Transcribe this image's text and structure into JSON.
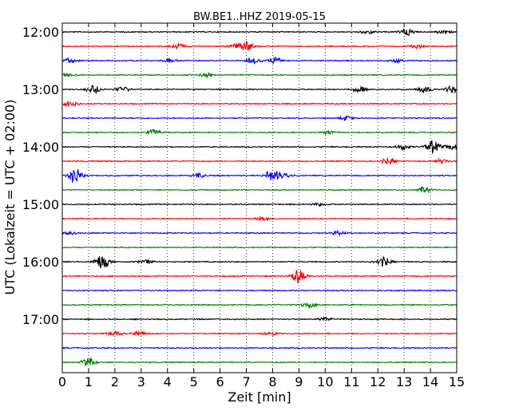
{
  "chart_data": {
    "type": "line",
    "title": "BW.BE1..HHZ 2019-05-15",
    "xlabel": "Zeit  [min]",
    "ylabel": "UTC (Lokalzeit = UTC + 02:00)",
    "xlim": [
      0,
      15
    ],
    "x_ticks": [
      "0",
      "1",
      "2",
      "3",
      "4",
      "5",
      "6",
      "7",
      "8",
      "9",
      "10",
      "11",
      "12",
      "13",
      "14",
      "15"
    ],
    "y_ticks": [
      "12:00",
      "13:00",
      "14:00",
      "15:00",
      "16:00",
      "17:00"
    ],
    "grid": "vertical-dotted",
    "trace_colors": [
      "#000000",
      "#ff0000",
      "#0000ff",
      "#008000"
    ],
    "trace_interval_min": 15,
    "traces": [
      {
        "start": "12:00",
        "events": [
          [
            11.6,
            0.25
          ],
          [
            13.1,
            0.45
          ],
          [
            14.5,
            0.3
          ]
        ]
      },
      {
        "start": "12:15",
        "events": [
          [
            4.4,
            0.4
          ],
          [
            6.6,
            0.35
          ],
          [
            7.0,
            0.55
          ],
          [
            13.5,
            0.3
          ]
        ]
      },
      {
        "start": "12:30",
        "events": [
          [
            0.3,
            0.35
          ],
          [
            4.1,
            0.25
          ],
          [
            7.3,
            0.45
          ],
          [
            8.1,
            0.4
          ],
          [
            12.7,
            0.3
          ]
        ]
      },
      {
        "start": "12:45",
        "events": [
          [
            0.2,
            0.25
          ],
          [
            5.5,
            0.25
          ]
        ]
      },
      {
        "start": "13:00",
        "events": [
          [
            1.2,
            0.6
          ],
          [
            2.3,
            0.35
          ],
          [
            11.3,
            0.4
          ],
          [
            13.8,
            0.4
          ],
          [
            14.8,
            0.45
          ]
        ]
      },
      {
        "start": "13:15",
        "events": [
          [
            0.3,
            0.45
          ]
        ]
      },
      {
        "start": "13:30",
        "events": [
          [
            10.8,
            0.25
          ]
        ]
      },
      {
        "start": "13:45",
        "events": [
          [
            3.5,
            0.45
          ],
          [
            10.1,
            0.3
          ]
        ]
      },
      {
        "start": "14:00",
        "events": [
          [
            13.0,
            0.4
          ],
          [
            14.1,
            0.9
          ],
          [
            14.8,
            0.4
          ]
        ]
      },
      {
        "start": "14:15",
        "events": [
          [
            12.4,
            0.45
          ],
          [
            14.4,
            0.3
          ]
        ]
      },
      {
        "start": "14:30",
        "events": [
          [
            0.5,
            1.0
          ],
          [
            5.2,
            0.3
          ],
          [
            8.0,
            1.0
          ],
          [
            8.5,
            0.3
          ]
        ]
      },
      {
        "start": "14:45",
        "events": [
          [
            13.8,
            0.5
          ]
        ]
      },
      {
        "start": "15:00",
        "events": [
          [
            9.8,
            0.2
          ]
        ]
      },
      {
        "start": "15:15",
        "events": [
          [
            7.6,
            0.35
          ]
        ]
      },
      {
        "start": "15:30",
        "events": [
          [
            0.3,
            0.2
          ],
          [
            10.5,
            0.3
          ]
        ]
      },
      {
        "start": "15:45",
        "events": []
      },
      {
        "start": "16:00",
        "events": [
          [
            1.5,
            1.0
          ],
          [
            3.2,
            0.25
          ],
          [
            12.2,
            0.7
          ]
        ]
      },
      {
        "start": "16:15",
        "events": [
          [
            9.0,
            1.0
          ]
        ]
      },
      {
        "start": "16:30",
        "events": []
      },
      {
        "start": "16:45",
        "events": [
          [
            9.4,
            0.4
          ]
        ]
      },
      {
        "start": "17:00",
        "events": [
          [
            10.0,
            0.25
          ]
        ]
      },
      {
        "start": "17:15",
        "events": [
          [
            2.0,
            0.3
          ],
          [
            2.9,
            0.25
          ],
          [
            7.9,
            0.3
          ]
        ]
      },
      {
        "start": "17:30",
        "events": []
      },
      {
        "start": "17:45",
        "events": [
          [
            1.0,
            0.6
          ]
        ]
      }
    ]
  }
}
